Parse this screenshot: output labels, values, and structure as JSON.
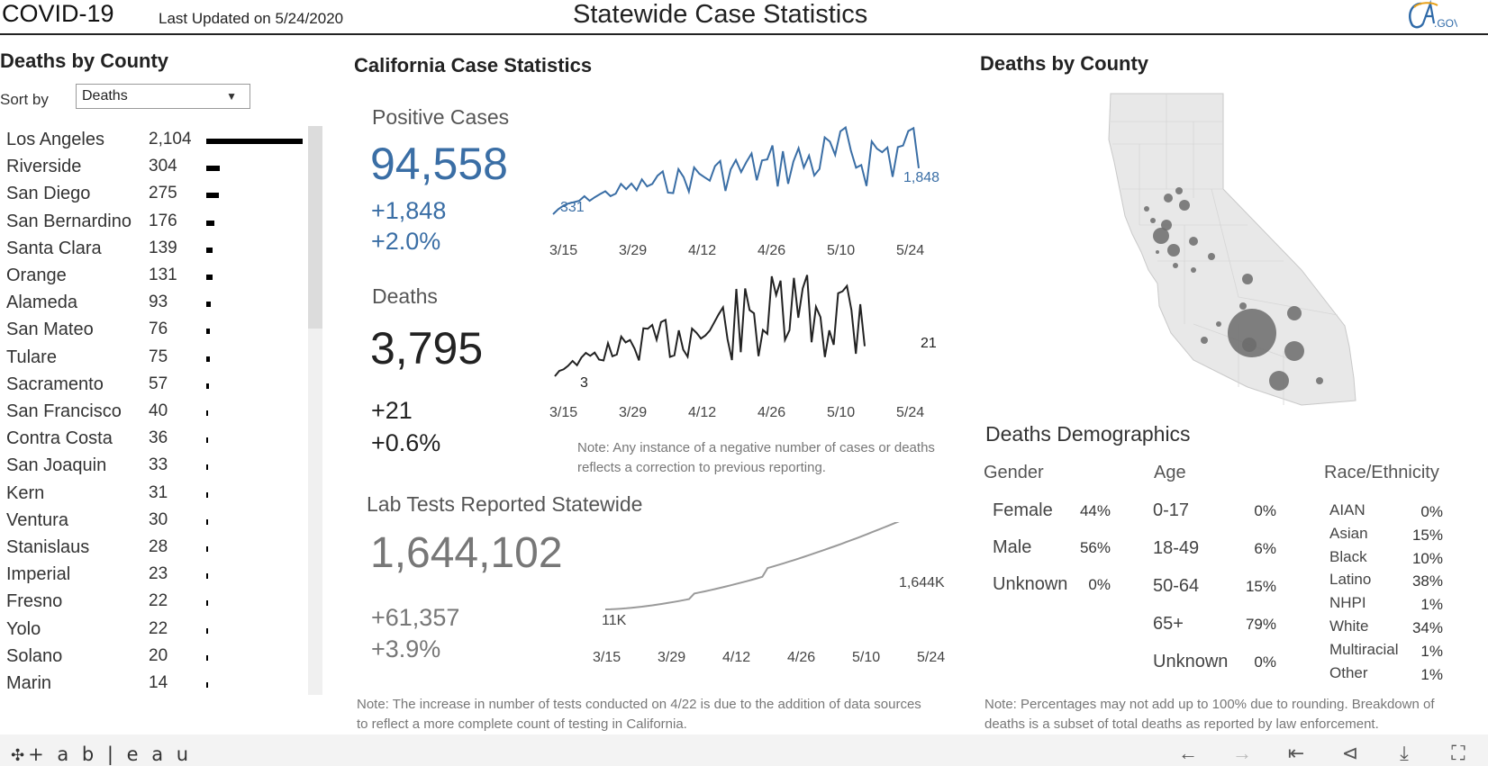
{
  "header": {
    "title": "COVID-19",
    "updated": "Last Updated on 5/24/2020",
    "center_title": "Statewide Case Statistics",
    "logo_text": "CA.GOV"
  },
  "left": {
    "title": "Deaths by County",
    "sort_label": "Sort by",
    "sort_value": "Deaths",
    "max_value": 2104,
    "counties": [
      {
        "name": "Los Angeles",
        "value": "2,104",
        "n": 2104
      },
      {
        "name": "Riverside",
        "value": "304",
        "n": 304
      },
      {
        "name": "San Diego",
        "value": "275",
        "n": 275
      },
      {
        "name": "San Bernardino",
        "value": "176",
        "n": 176
      },
      {
        "name": "Santa Clara",
        "value": "139",
        "n": 139
      },
      {
        "name": "Orange",
        "value": "131",
        "n": 131
      },
      {
        "name": "Alameda",
        "value": "93",
        "n": 93
      },
      {
        "name": "San Mateo",
        "value": "76",
        "n": 76
      },
      {
        "name": "Tulare",
        "value": "75",
        "n": 75
      },
      {
        "name": "Sacramento",
        "value": "57",
        "n": 57
      },
      {
        "name": "San Francisco",
        "value": "40",
        "n": 40
      },
      {
        "name": "Contra Costa",
        "value": "36",
        "n": 36
      },
      {
        "name": "San Joaquin",
        "value": "33",
        "n": 33
      },
      {
        "name": "Kern",
        "value": "31",
        "n": 31
      },
      {
        "name": "Ventura",
        "value": "30",
        "n": 30
      },
      {
        "name": "Stanislaus",
        "value": "28",
        "n": 28
      },
      {
        "name": "Imperial",
        "value": "23",
        "n": 23
      },
      {
        "name": "Fresno",
        "value": "22",
        "n": 22
      },
      {
        "name": "Yolo",
        "value": "22",
        "n": 22
      },
      {
        "name": "Solano",
        "value": "20",
        "n": 20
      },
      {
        "name": "Marin",
        "value": "14",
        "n": 14
      }
    ]
  },
  "middle": {
    "title": "California Case Statistics",
    "positive": {
      "label": "Positive Cases",
      "total": "94,558",
      "change": "+1,848",
      "pct": "+2.0%",
      "start_label": "331",
      "end_label": "1,848",
      "axis": [
        "3/15",
        "3/29",
        "4/12",
        "4/26",
        "5/10",
        "5/24"
      ]
    },
    "deaths": {
      "label": "Deaths",
      "total": "3,795",
      "change": "+21",
      "pct": "+0.6%",
      "start_label": "3",
      "end_label": "21",
      "axis": [
        "3/15",
        "3/29",
        "4/12",
        "4/26",
        "5/10",
        "5/24"
      ]
    },
    "note1": "Note: Any instance of a negative number of cases or deaths reflects a correction to previous reporting.",
    "labtests": {
      "label": "Lab Tests Reported Statewide",
      "total": "1,644,102",
      "change": "+61,357",
      "pct": "+3.9%",
      "start_label": "11K",
      "end_label": "1,644K",
      "axis": [
        "3/15",
        "3/29",
        "4/12",
        "4/26",
        "5/10",
        "5/24"
      ]
    },
    "note2": "Note: The increase in number of tests conducted on 4/22 is due to the addition of data sources to reflect a more complete count of testing in California."
  },
  "right": {
    "title": "Deaths by County",
    "demographics_title": "Deaths Demographics",
    "gender": {
      "heading": "Gender",
      "rows": [
        {
          "label": "Female",
          "value": "44%"
        },
        {
          "label": "Male",
          "value": "56%"
        },
        {
          "label": "Unknown",
          "value": "0%"
        }
      ]
    },
    "age": {
      "heading": "Age",
      "rows": [
        {
          "label": "0-17",
          "value": "0%"
        },
        {
          "label": "18-49",
          "value": "6%"
        },
        {
          "label": "50-64",
          "value": "15%"
        },
        {
          "label": "65+",
          "value": "79%"
        },
        {
          "label": "Unknown",
          "value": "0%"
        }
      ]
    },
    "race": {
      "heading": "Race/Ethnicity",
      "rows": [
        {
          "label": "AIAN",
          "value": "0%"
        },
        {
          "label": "Asian",
          "value": "15%"
        },
        {
          "label": "Black",
          "value": "10%"
        },
        {
          "label": "Latino",
          "value": "38%"
        },
        {
          "label": "NHPI",
          "value": "1%"
        },
        {
          "label": "White",
          "value": "34%"
        },
        {
          "label": "Multiracial",
          "value": "1%"
        },
        {
          "label": "Other",
          "value": "1%"
        }
      ]
    },
    "note": "Note: Percentages may not add up to 100% due to rounding. Breakdown of deaths is a subset of total deaths as reported by law enforcement."
  },
  "footer": {
    "brand": "+ a b | e a u",
    "icons": [
      "undo-icon",
      "redo-icon",
      "revert-icon",
      "share-icon",
      "download-icon",
      "fullscreen-icon"
    ]
  },
  "colors": {
    "positive": "#3a6ea5",
    "deaths": "#222222",
    "tests": "#9a9a9a",
    "bubble": "#6b6b6b"
  }
}
